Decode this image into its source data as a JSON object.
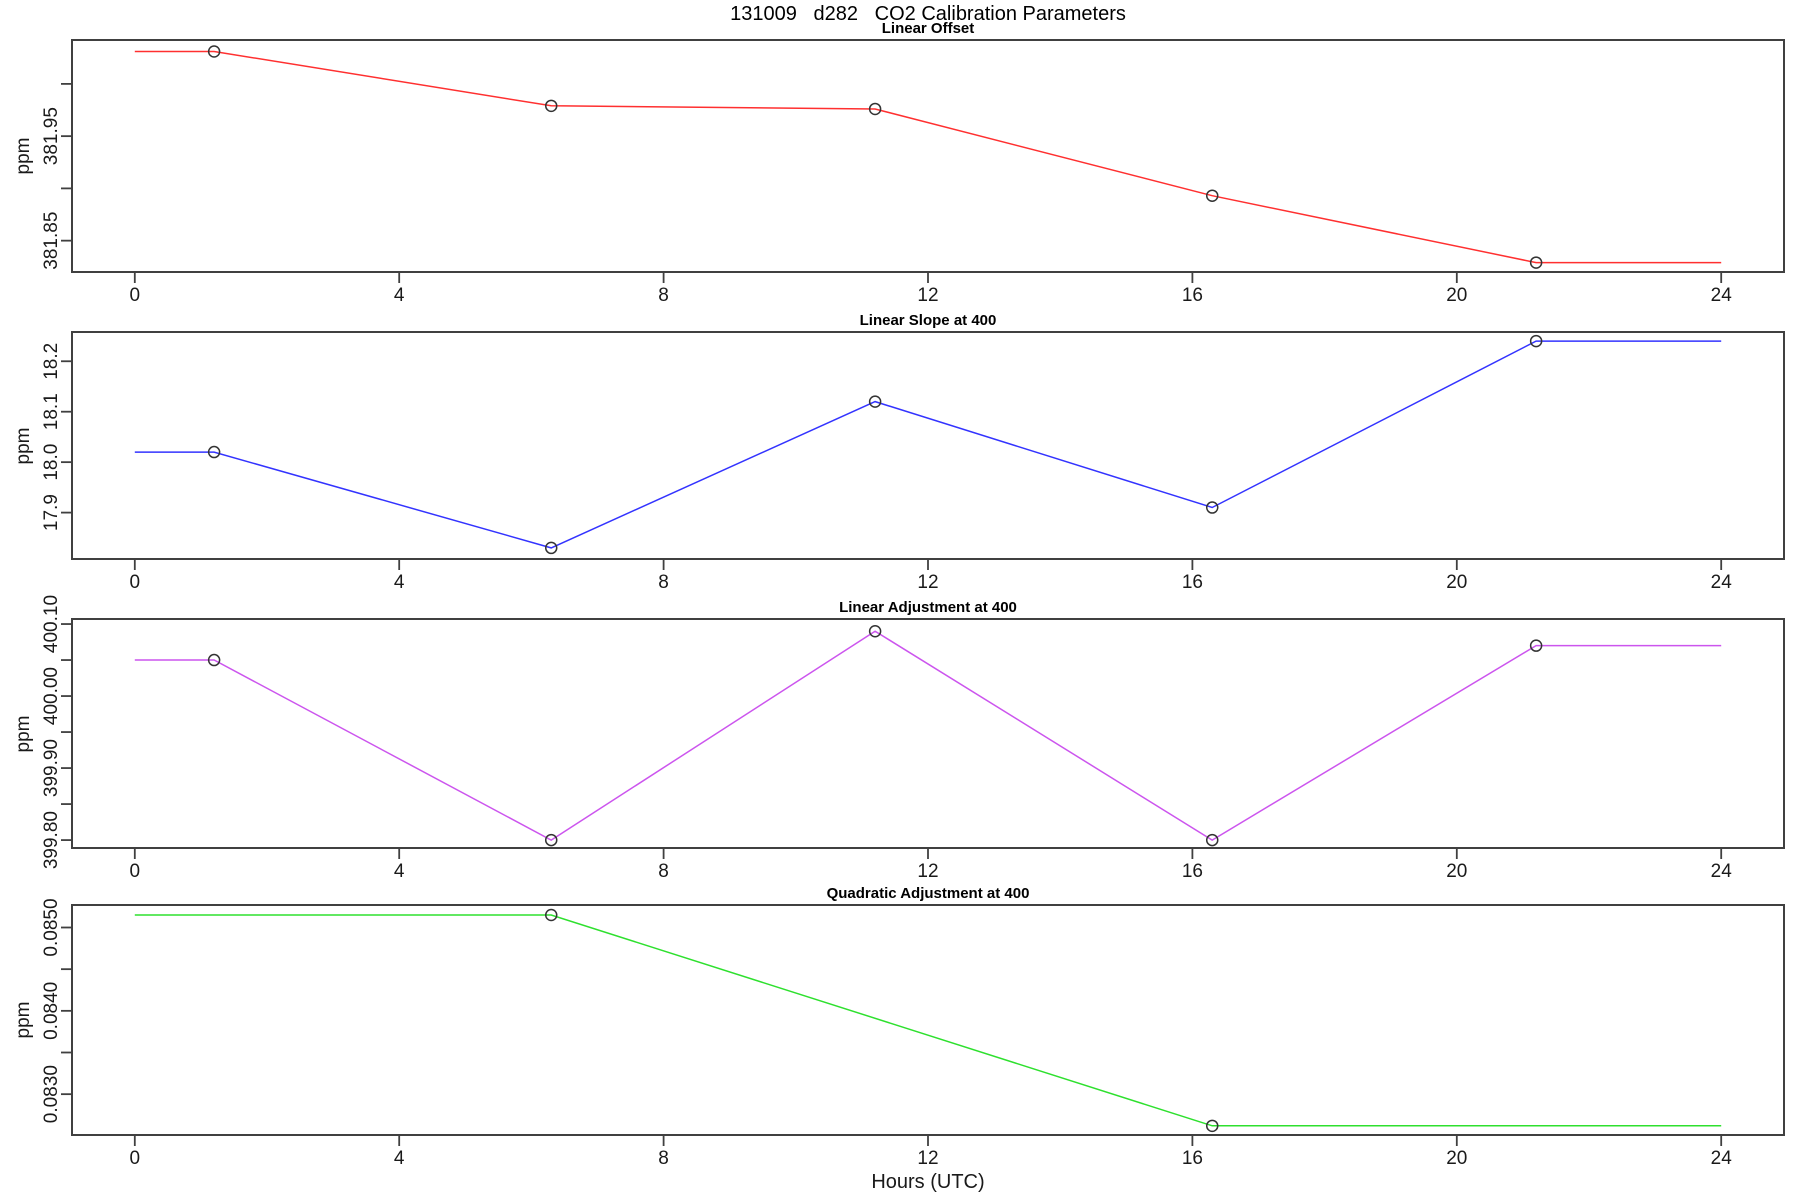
{
  "main_title": "131009   d282   CO2 Calibration Parameters",
  "axis": {
    "x_label": "Hours (UTC)",
    "y_label": "ppm"
  },
  "chart_data": [
    {
      "type": "line",
      "title": "Linear Offset",
      "series_color": "#ff3030",
      "marker": "open-circle",
      "ylabel": "ppm",
      "x": [
        1.2,
        6.3,
        11.2,
        16.3,
        21.2
      ],
      "y": [
        382.031,
        381.979,
        381.976,
        381.893,
        381.829
      ],
      "line_span": [
        0,
        24
      ],
      "xlim": [
        -0.95,
        24.95
      ],
      "ylim": [
        381.82,
        382.042
      ],
      "xticks": [
        0,
        4,
        8,
        12,
        16,
        20,
        24
      ],
      "xtick_labels": [
        "0",
        "4",
        "8",
        "12",
        "16",
        "20",
        "24"
      ],
      "yticks": [
        381.85,
        381.9,
        381.95,
        382.0
      ],
      "ytick_labels": [
        "381.85",
        "",
        "381.95",
        ""
      ],
      "grid": false,
      "legend": "none"
    },
    {
      "type": "line",
      "title": "Linear Slope at 400",
      "series_color": "#3333ff",
      "marker": "open-circle",
      "ylabel": "ppm",
      "x": [
        1.2,
        6.3,
        11.2,
        16.3,
        21.2
      ],
      "y": [
        18.02,
        17.83,
        18.12,
        17.91,
        18.24
      ],
      "line_span": [
        0,
        24
      ],
      "xlim": [
        -0.95,
        24.95
      ],
      "ylim": [
        17.808,
        18.258
      ],
      "xticks": [
        0,
        4,
        8,
        12,
        16,
        20,
        24
      ],
      "xtick_labels": [
        "0",
        "4",
        "8",
        "12",
        "16",
        "20",
        "24"
      ],
      "yticks": [
        17.9,
        18.0,
        18.1,
        18.2
      ],
      "ytick_labels": [
        "17.9",
        "18.0",
        "18.1",
        "18.2"
      ],
      "grid": false,
      "legend": "none"
    },
    {
      "type": "line",
      "title": "Linear Adjustment at 400",
      "series_color": "#cc55ee",
      "marker": "open-circle",
      "ylabel": "ppm",
      "x": [
        1.2,
        6.3,
        11.2,
        16.3,
        21.2
      ],
      "y": [
        400.05,
        399.8,
        400.09,
        399.8,
        400.07
      ],
      "line_span": [
        0,
        24
      ],
      "xlim": [
        -0.95,
        24.95
      ],
      "ylim": [
        399.789,
        400.107
      ],
      "xticks": [
        0,
        4,
        8,
        12,
        16,
        20,
        24
      ],
      "xtick_labels": [
        "0",
        "4",
        "8",
        "12",
        "16",
        "20",
        "24"
      ],
      "yticks": [
        399.8,
        399.85,
        399.9,
        399.95,
        400.0,
        400.05,
        400.1
      ],
      "ytick_labels": [
        "399.80",
        "",
        "399.90",
        "",
        "400.00",
        "",
        "400.10"
      ],
      "grid": false,
      "legend": "none"
    },
    {
      "type": "line",
      "title": "Quadratic Adjustment at 400",
      "series_color": "#2ee02e",
      "marker": "open-circle",
      "ylabel": "ppm",
      "x": [
        6.3,
        16.3
      ],
      "y": [
        0.08515,
        0.08262
      ],
      "line_span": [
        0,
        24
      ],
      "xlim": [
        -0.95,
        24.95
      ],
      "ylim": [
        0.08251,
        0.08527
      ],
      "xticks": [
        0,
        4,
        8,
        12,
        16,
        20,
        24
      ],
      "xtick_labels": [
        "0",
        "4",
        "8",
        "12",
        "16",
        "20",
        "24"
      ],
      "yticks": [
        0.083,
        0.0835,
        0.084,
        0.0845,
        0.085
      ],
      "ytick_labels": [
        "0.0830",
        "",
        "0.0840",
        "",
        "0.0850"
      ],
      "grid": false,
      "legend": "none"
    }
  ]
}
